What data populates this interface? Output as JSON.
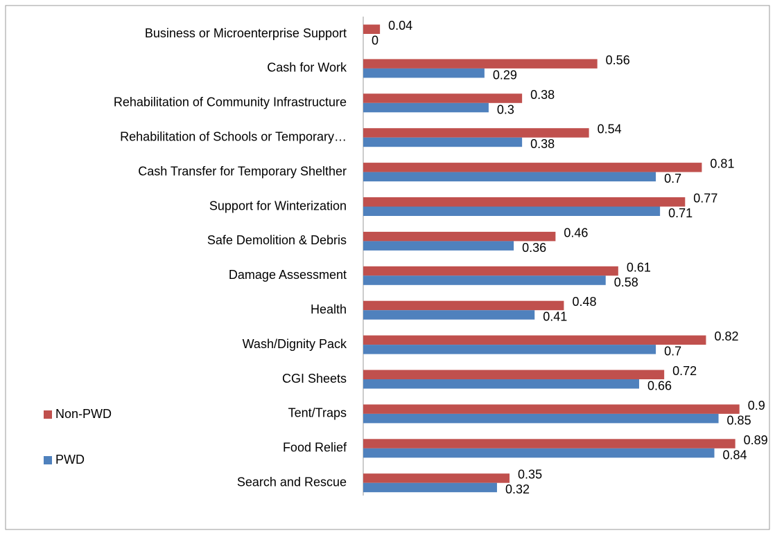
{
  "chart_data": {
    "type": "bar",
    "orientation": "horizontal",
    "categories": [
      "Business or Microenterprise Support",
      "Cash for Work",
      "Rehabilitation of Community Infrastructure",
      "Rehabilitation of Schools or Temporary…",
      "Cash Transfer for Temporary Shelther",
      "Support for Winterization",
      "Safe Demolition & Debris",
      "Damage Assessment",
      "Health",
      "Wash/Dignity Pack",
      "CGI Sheets",
      "Tent/Traps",
      "Food Relief",
      "Search and Rescue"
    ],
    "series": [
      {
        "name": "Non-PWD",
        "color": "#c0504d",
        "values": [
          0.04,
          0.56,
          0.38,
          0.54,
          0.81,
          0.77,
          0.46,
          0.61,
          0.48,
          0.82,
          0.72,
          0.9,
          0.89,
          0.35
        ]
      },
      {
        "name": "PWD",
        "color": "#4f81bd",
        "values": [
          0,
          0.29,
          0.3,
          0.38,
          0.7,
          0.71,
          0.36,
          0.58,
          0.41,
          0.7,
          0.66,
          0.85,
          0.84,
          0.32
        ]
      }
    ],
    "legend": "left"
  }
}
